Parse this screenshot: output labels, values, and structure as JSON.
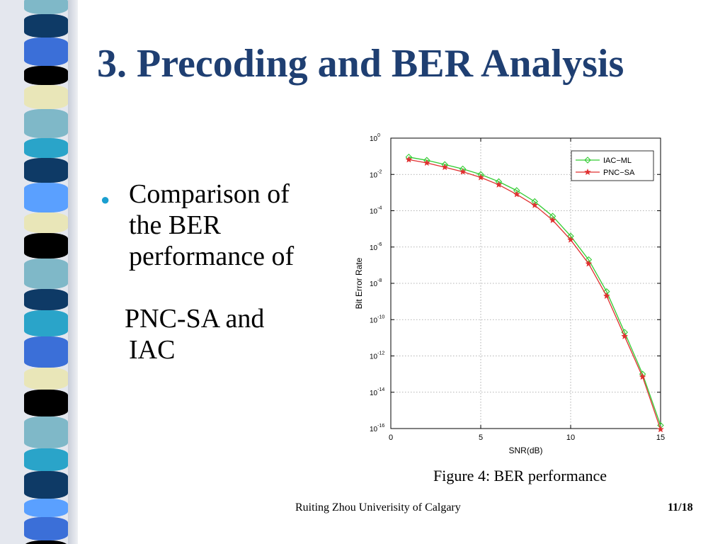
{
  "slide": {
    "title": "3. Precoding and BER Analysis",
    "bullet": {
      "lines": [
        "Comparison of",
        "the BER",
        "performance of"
      ],
      "continuation": [
        "PNC-SA and",
        "IAC"
      ]
    },
    "caption": "Figure 4: BER performance",
    "footer": {
      "author_affiliation": "Ruiting Zhou  Univerisity of Calgary",
      "page": "11/18"
    },
    "colors": {
      "title": "#1f3f72",
      "bullet": "#1a9fd0",
      "strip_palette": [
        "#7fb8c8",
        "#0e3a66",
        "#3b6fd8",
        "#000000",
        "#e9e6b8",
        "#2aa4c9",
        "#5aa0ff"
      ]
    }
  },
  "chart_data": {
    "type": "line",
    "xlabel": "SNR(dB)",
    "ylabel": "Bit Error Rate",
    "xlim": [
      0,
      15
    ],
    "ylim_exp": [
      -16,
      0
    ],
    "yscale": "log",
    "grid": true,
    "legend_position": "top-right",
    "x_ticks": [
      "0",
      "5",
      "10",
      "15"
    ],
    "y_ticks": [
      {
        "base": "10",
        "exp": "0"
      },
      {
        "base": "10",
        "exp": "-2"
      },
      {
        "base": "10",
        "exp": "-4"
      },
      {
        "base": "10",
        "exp": "-6"
      },
      {
        "base": "10",
        "exp": "-8"
      },
      {
        "base": "10",
        "exp": "-10"
      },
      {
        "base": "10",
        "exp": "-12"
      },
      {
        "base": "10",
        "exp": "-14"
      },
      {
        "base": "10",
        "exp": "-16"
      }
    ],
    "x": [
      1,
      2,
      3,
      4,
      5,
      6,
      7,
      8,
      9,
      10,
      11,
      12,
      13,
      14,
      15
    ],
    "series": [
      {
        "name": "IAC−ML",
        "color": "#33cc33",
        "marker": "diamond",
        "y": [
          0.09,
          0.06,
          0.035,
          0.02,
          0.01,
          0.004,
          0.0013,
          0.00032,
          5e-05,
          4e-06,
          2e-07,
          3.5e-09,
          2e-11,
          1e-13,
          1.5e-16
        ]
      },
      {
        "name": "PNC−SA",
        "color": "#e03030",
        "marker": "star",
        "y": [
          0.065,
          0.043,
          0.025,
          0.014,
          0.0068,
          0.0027,
          0.0008,
          0.0002,
          3e-05,
          2.5e-06,
          1.2e-07,
          2e-09,
          1.2e-11,
          7e-14,
          9e-17
        ]
      }
    ]
  }
}
